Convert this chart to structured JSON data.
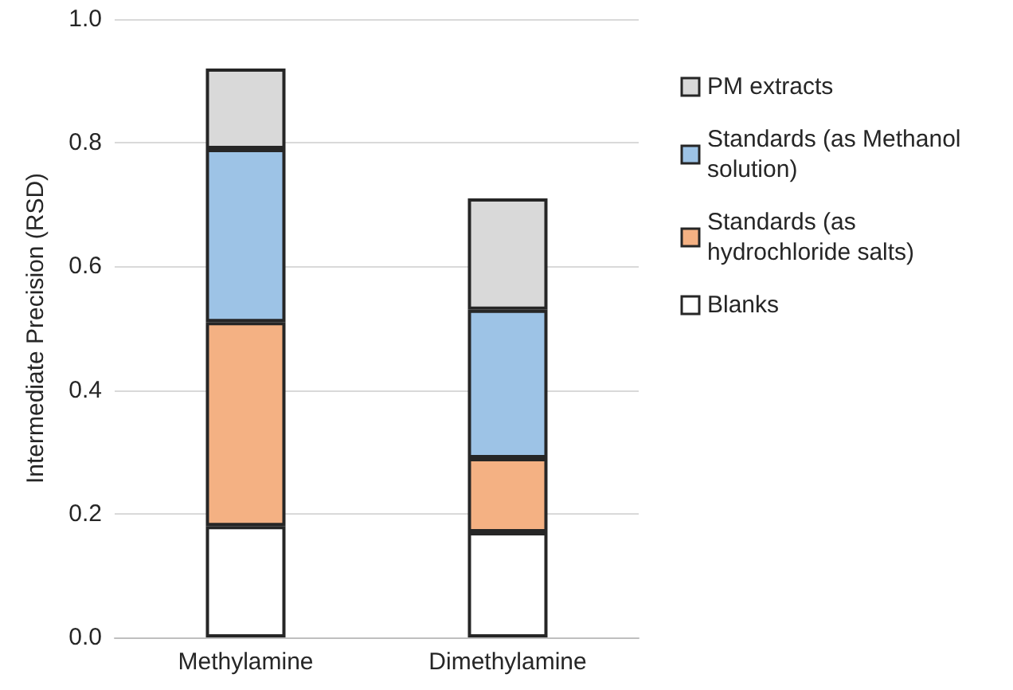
{
  "chart_data": {
    "type": "bar",
    "ylabel": "Intermediate Precision (RSD)",
    "categories": [
      "Methylamine",
      "Dimethylamine"
    ],
    "stacked": true,
    "series": [
      {
        "name": "Blanks",
        "color": "#ffffff",
        "values": [
          0.18,
          0.17
        ]
      },
      {
        "name": "Standards (as hydrochloride salts)",
        "color": "#f4b183",
        "values": [
          0.33,
          0.12
        ]
      },
      {
        "name": "Standards (as Methanol solution)",
        "color": "#9dc3e6",
        "values": [
          0.28,
          0.24
        ]
      },
      {
        "name": "PM extracts",
        "color": "#d9d9d9",
        "values": [
          0.13,
          0.18
        ]
      }
    ],
    "ylim": [
      0,
      1.0
    ],
    "yticks": [
      {
        "value": 0,
        "label": "0.0"
      },
      {
        "value": 0.2,
        "label": "0.2"
      },
      {
        "value": 0.4,
        "label": "0.4"
      },
      {
        "value": 0.6,
        "label": "0.6"
      },
      {
        "value": 0.8,
        "label": "0.8"
      },
      {
        "value": 1.0,
        "label": "1.0"
      }
    ],
    "grid": "y",
    "legend": "right"
  }
}
